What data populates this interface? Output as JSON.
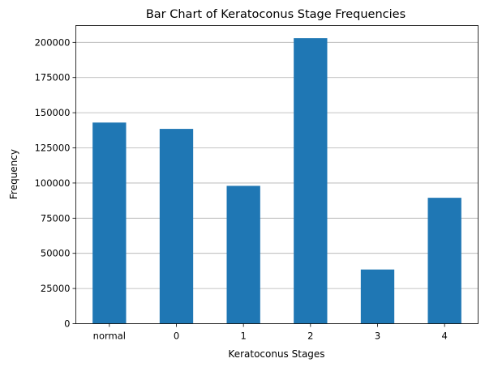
{
  "chart_data": {
    "type": "bar",
    "title": "Bar Chart of Keratoconus Stage Frequencies",
    "xlabel": "Keratoconus Stages",
    "ylabel": "Frequency",
    "categories": [
      "normal",
      "0",
      "1",
      "2",
      "3",
      "4"
    ],
    "values": [
      143000,
      138500,
      98000,
      203000,
      38500,
      89500
    ],
    "ylim": [
      0,
      212000
    ],
    "yticks": [
      0,
      25000,
      50000,
      75000,
      100000,
      125000,
      150000,
      175000,
      200000
    ],
    "grid": "y",
    "bar_color": "#1f77b4",
    "legend": "none"
  }
}
